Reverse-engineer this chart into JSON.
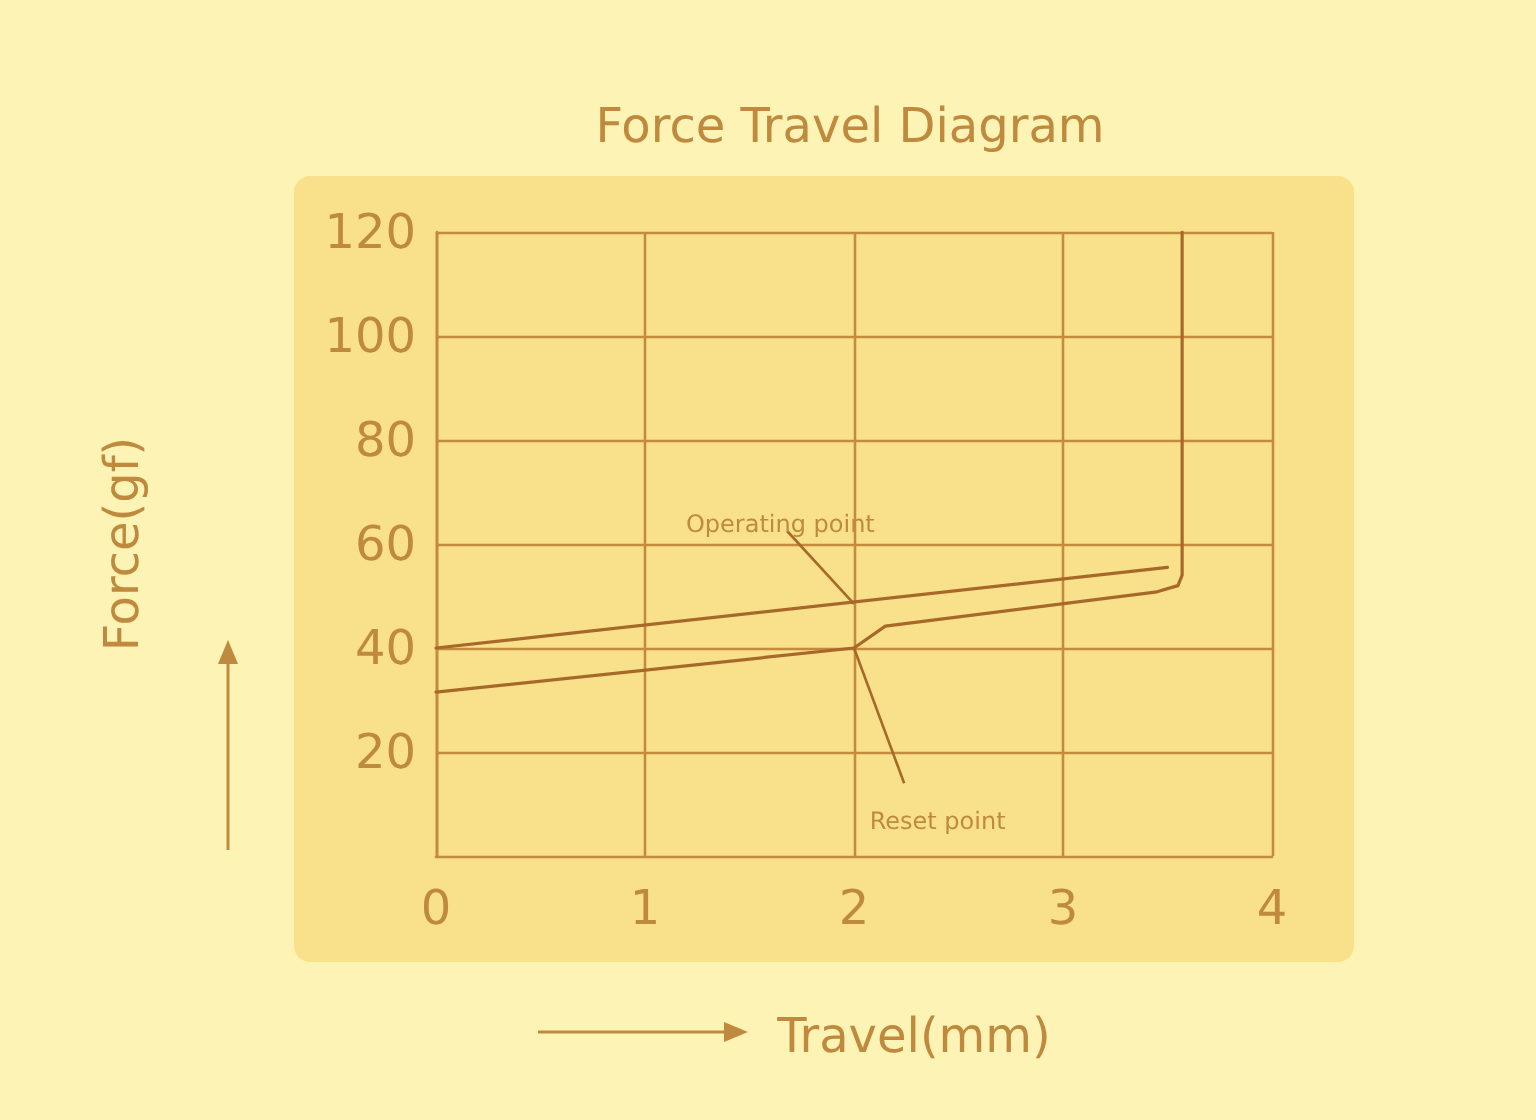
{
  "chart_data": {
    "type": "line",
    "title": "Force Travel Diagram",
    "xlabel": "Travel(mm)",
    "ylabel": "Force(gf)",
    "series": [
      {
        "color": "#a8682a",
        "x": [
          0,
          3.5
        ],
        "values": [
          40,
          55.5
        ]
      },
      {
        "color": "#a8682a",
        "x": [
          0,
          2,
          2.15,
          3.45,
          3.55,
          3.57,
          3.57
        ],
        "values": [
          31.5,
          40,
          44.2,
          50.8,
          52,
          54,
          120
        ]
      }
    ],
    "annotations": [
      {
        "text": "Operating point",
        "x": 2,
        "y": 48.5
      },
      {
        "text": "Reset point",
        "x": 2,
        "y": 40
      }
    ],
    "xlim": [
      0,
      4
    ],
    "xticks": [
      0,
      1,
      2,
      3,
      4
    ],
    "ylim": [
      0,
      120
    ],
    "yticks": [
      20,
      40,
      60,
      80,
      100,
      120
    ],
    "grid": true,
    "marker": "none",
    "line_style": "solid"
  }
}
